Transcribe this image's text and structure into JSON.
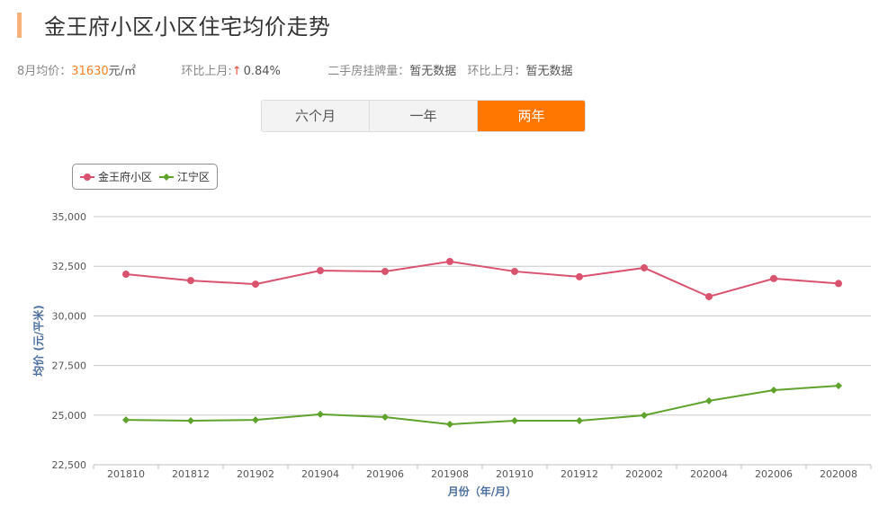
{
  "header": {
    "title": "金王府小区小区住宅均价走势",
    "accent_color": "#f8b27a"
  },
  "stats": {
    "avg_label": "8月均价：",
    "avg_value": "31630",
    "avg_unit": "元/㎡",
    "mom_label": "环比上月:",
    "mom_arrow": "↑",
    "mom_value": "0.84%",
    "listing_label": "二手房挂牌量：",
    "listing_value": "暂无数据",
    "listing_mom_label": "环比上月：",
    "listing_mom_value": "暂无数据"
  },
  "tabs": [
    {
      "label": "六个月",
      "active": false
    },
    {
      "label": "一年",
      "active": false
    },
    {
      "label": "两年",
      "active": true
    }
  ],
  "legend": [
    {
      "name": "金王府小区",
      "color": "#d9536f"
    },
    {
      "name": "江宁区",
      "color": "#5fa22c"
    }
  ],
  "chart_data": {
    "type": "line",
    "title": "",
    "xlabel": "月份（年/月）",
    "ylabel": "均价 (元/平米)",
    "ylim": [
      22500,
      35000
    ],
    "yticks": [
      22500,
      25000,
      27500,
      30000,
      32500,
      35000
    ],
    "ytick_labels": [
      "22,500",
      "25,000",
      "27,500",
      "30,000",
      "32,500",
      "35,000"
    ],
    "grid": true,
    "legend_position": "top-left",
    "categories": [
      "201810",
      "201812",
      "201902",
      "201904",
      "201906",
      "201908",
      "201910",
      "201912",
      "202002",
      "202004",
      "202006",
      "202008"
    ],
    "series": [
      {
        "name": "金王府小区",
        "color": "#d9536f",
        "marker": "circle",
        "values": [
          32100,
          31780,
          31600,
          32280,
          32240,
          32740,
          32240,
          31970,
          32420,
          30970,
          31880,
          31630
        ]
      },
      {
        "name": "江宁区",
        "color": "#5fa22c",
        "marker": "diamond",
        "values": [
          24760,
          24720,
          24760,
          25040,
          24900,
          24540,
          24720,
          24720,
          24990,
          25720,
          26260,
          26480
        ]
      }
    ]
  }
}
